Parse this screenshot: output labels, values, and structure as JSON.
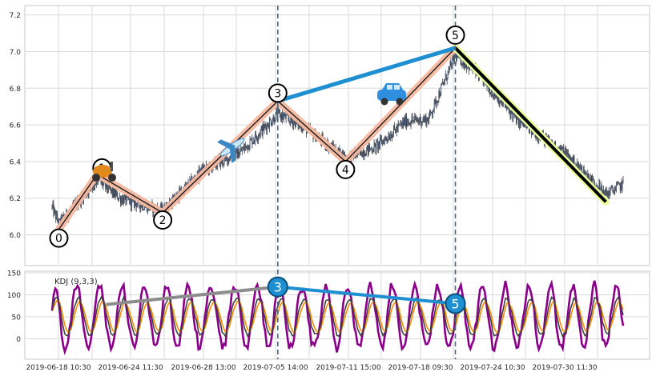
{
  "chart_data": [
    {
      "type": "candlestick",
      "ylim": [
        5.85,
        7.25
      ],
      "y_ticks": [
        "6.0",
        "6.2",
        "6.4",
        "6.6",
        "6.8",
        "7.0",
        "7.2"
      ],
      "x_ticks": [
        "2019-06-18 10:30",
        "2019-06-24 11:30",
        "2019-06-28 13:00",
        "2019-07-05 14:00",
        "2019-07-11 15:00",
        "2019-07-18 09:30",
        "2019-07-24 10:30",
        "2019-07-30 11:30"
      ],
      "grid": true,
      "pivot_labels": [
        "0",
        "1",
        "2",
        "3",
        "4",
        "5"
      ],
      "pivots": [
        {
          "label": "0",
          "x": 9,
          "y": 6.03
        },
        {
          "label": "1",
          "x": 60,
          "y": 6.33
        },
        {
          "label": "2",
          "x": 147,
          "y": 6.12
        },
        {
          "label": "3",
          "x": 300,
          "y": 6.73
        },
        {
          "label": "4",
          "x": 390,
          "y": 6.4
        },
        {
          "label": "5",
          "x": 536,
          "y": 7.02
        }
      ],
      "segment_end": {
        "x": 736,
        "y": 6.18
      },
      "highlight_line": {
        "from": "3",
        "to": "5",
        "color": "#1e8fd0"
      },
      "wave_color": "#f4b8a0",
      "final_leg_color": "#e8ff9a",
      "vertical_markers": [
        "3",
        "5"
      ],
      "icons": [
        "scooter-icon",
        "airplane-icon",
        "car-icon"
      ],
      "candles": {
        "count": 760,
        "up_color": "#3a3f4b",
        "down_color": "#3a3f4b",
        "trend_points": [
          [
            0,
            6.15
          ],
          [
            9,
            6.06
          ],
          [
            60,
            6.3
          ],
          [
            90,
            6.2
          ],
          [
            147,
            6.13
          ],
          [
            200,
            6.35
          ],
          [
            250,
            6.45
          ],
          [
            300,
            6.66
          ],
          [
            330,
            6.6
          ],
          [
            390,
            6.42
          ],
          [
            430,
            6.48
          ],
          [
            470,
            6.62
          ],
          [
            500,
            6.63
          ],
          [
            536,
            6.98
          ],
          [
            560,
            6.9
          ],
          [
            620,
            6.62
          ],
          [
            680,
            6.45
          ],
          [
            736,
            6.22
          ],
          [
            760,
            6.28
          ]
        ]
      }
    },
    {
      "type": "line",
      "title": "KDJ (9,3,3)",
      "ylim": [
        -25,
        155
      ],
      "y_ticks": [
        "0",
        "50",
        "100",
        "150"
      ],
      "series": [
        {
          "key": "J",
          "color": "#8b008b"
        },
        {
          "key": "D",
          "color": "#ff8c00"
        },
        {
          "key": "K",
          "color": "#404040"
        }
      ],
      "pivot_markers": [
        {
          "label": "3",
          "x": 300,
          "y": 118
        },
        {
          "label": "5",
          "x": 536,
          "y": 80
        }
      ],
      "grey_line": {
        "from_x": 72,
        "from_y": 78,
        "to_x": 300,
        "to_y": 118,
        "color": "#8c8c8c"
      },
      "blue_line": {
        "color": "#1e8fd0"
      }
    }
  ],
  "colors": {
    "background": "#ffffff",
    "axes_face": "#ffffff",
    "grid": "#d9d9d9",
    "spine": "#c8c8c8",
    "marker_line": "#4f6477"
  }
}
